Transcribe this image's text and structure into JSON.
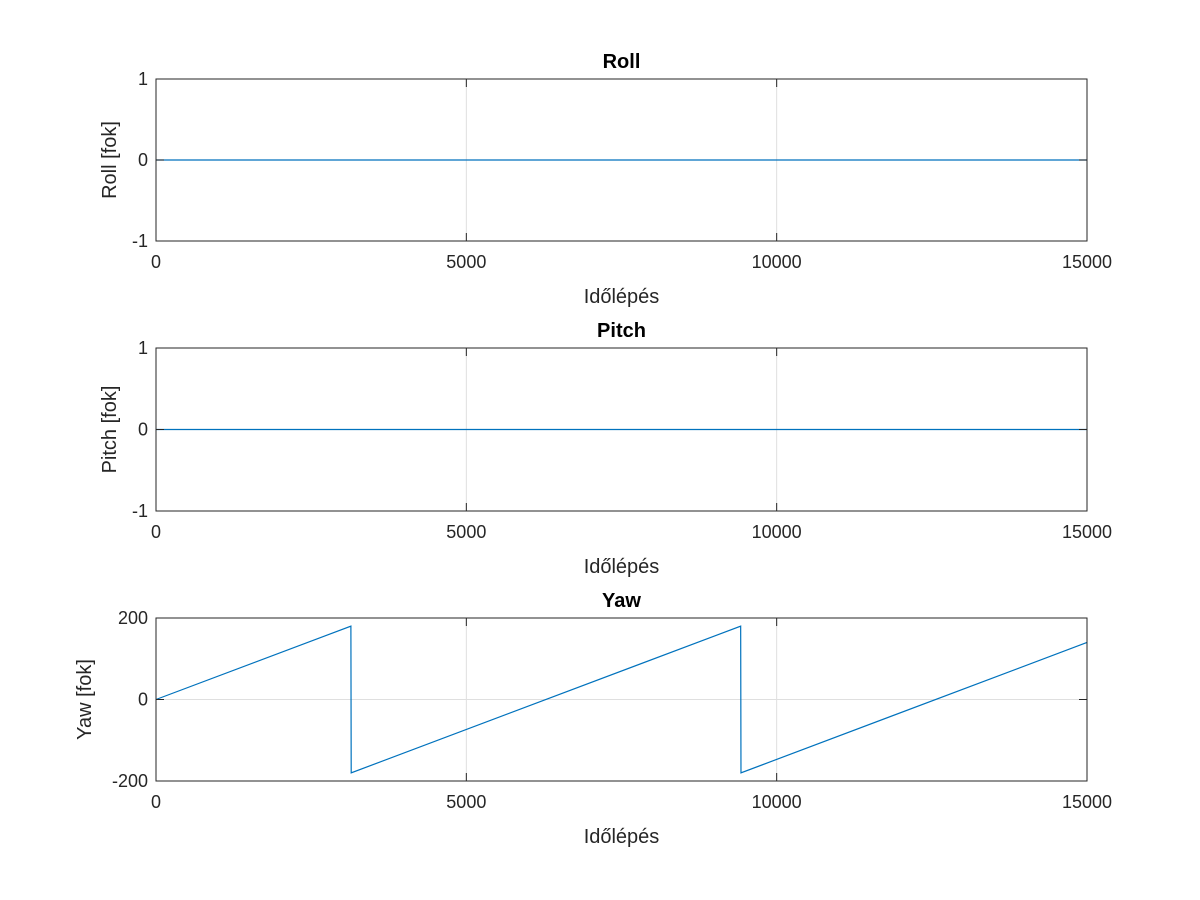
{
  "chart_data": [
    {
      "type": "line",
      "title": "Roll",
      "xlabel": "Időlépés",
      "ylabel": "Roll [fok]",
      "xlim": [
        0,
        15000
      ],
      "ylim": [
        -1,
        1
      ],
      "xticks": [
        0,
        5000,
        10000,
        15000
      ],
      "yticks": [
        -1,
        0,
        1
      ],
      "grid": true,
      "color": "#0072BD",
      "series": [
        {
          "x": [
            0,
            15000
          ],
          "y": [
            0,
            0
          ]
        }
      ]
    },
    {
      "type": "line",
      "title": "Pitch",
      "xlabel": "Időlépés",
      "ylabel": "Pitch [fok]",
      "xlim": [
        0,
        15000
      ],
      "ylim": [
        -1,
        1
      ],
      "xticks": [
        0,
        5000,
        10000,
        15000
      ],
      "yticks": [
        -1,
        0,
        1
      ],
      "grid": true,
      "color": "#0072BD",
      "series": [
        {
          "x": [
            0,
            15000
          ],
          "y": [
            0,
            0
          ]
        }
      ]
    },
    {
      "type": "line",
      "title": "Yaw",
      "xlabel": "Időlépés",
      "ylabel": "Yaw [fok]",
      "xlim": [
        0,
        15000
      ],
      "ylim": [
        -200,
        200
      ],
      "xticks": [
        0,
        5000,
        10000,
        15000
      ],
      "yticks": [
        -200,
        0,
        200
      ],
      "grid": true,
      "color": "#0072BD",
      "series": [
        {
          "x": [
            0,
            3140,
            3145,
            9420,
            9425,
            15000
          ],
          "y": [
            0,
            180,
            -180,
            180,
            -180,
            140
          ]
        }
      ]
    }
  ]
}
